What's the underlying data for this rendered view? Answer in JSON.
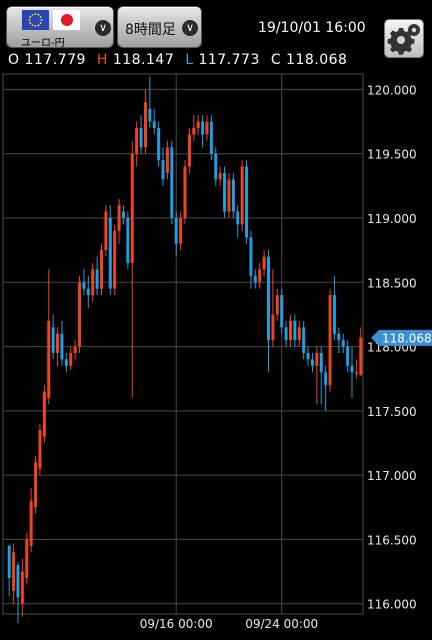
{
  "header": {
    "pair_label": "ユーロ-円",
    "timeframe_label": "8時間足",
    "datetime": "19/10/01 16:00",
    "icons": {
      "eu_flag": "eu-flag-icon",
      "jp_flag": "japan-flag-icon",
      "dropdown": "chevron-down-icon",
      "settings": "gear-icon"
    }
  },
  "ohlc": {
    "open_key": "O",
    "open": "117.779",
    "high_key": "H",
    "high": "118.147",
    "low_key": "L",
    "low": "117.773",
    "close_key": "C",
    "close": "118.068"
  },
  "colors": {
    "up": "#ef4322",
    "down": "#1da0e2",
    "grid": "#4a4a4a",
    "current_price_tag": "#3b8fd6"
  },
  "chart_data": {
    "type": "candlestick",
    "title": "",
    "ylim": [
      115.92,
      120.12
    ],
    "y_ticks": [
      "120.000",
      "119.500",
      "119.000",
      "118.500",
      "118.000",
      "117.500",
      "117.000",
      "116.500",
      "116.000"
    ],
    "x_ticks": [
      {
        "label": "09/16 00:00",
        "index": 38
      },
      {
        "label": "09/24 00:00",
        "index": 62
      }
    ],
    "current_price": "118.068",
    "candles": [
      [
        116.45,
        116.2,
        116.46,
        116.06
      ],
      [
        116.1,
        116.4,
        116.47,
        116.0
      ],
      [
        116.3,
        116.05,
        116.32,
        115.85
      ],
      [
        116.0,
        116.25,
        116.35,
        115.9
      ],
      [
        116.2,
        116.5,
        116.55,
        116.15
      ],
      [
        116.45,
        116.8,
        116.9,
        116.4
      ],
      [
        116.75,
        117.1,
        117.15,
        116.7
      ],
      [
        117.05,
        117.35,
        117.4,
        117.0
      ],
      [
        117.3,
        117.65,
        117.7,
        117.25
      ],
      [
        117.6,
        118.2,
        118.6,
        117.55
      ],
      [
        118.15,
        117.95,
        118.25,
        117.9
      ],
      [
        117.95,
        118.1,
        118.15,
        117.85
      ],
      [
        118.1,
        117.9,
        118.2,
        117.85
      ],
      [
        117.9,
        117.85,
        117.95,
        117.8
      ],
      [
        117.85,
        117.95,
        118.0,
        117.82
      ],
      [
        117.95,
        118.0,
        118.05,
        117.9
      ],
      [
        118.0,
        118.5,
        118.55,
        117.95
      ],
      [
        118.5,
        118.45,
        118.6,
        118.4
      ],
      [
        118.45,
        118.4,
        118.55,
        118.3
      ],
      [
        118.4,
        118.6,
        118.65,
        118.35
      ],
      [
        118.6,
        118.45,
        118.7,
        118.4
      ],
      [
        118.45,
        118.75,
        118.8,
        118.4
      ],
      [
        118.75,
        119.05,
        119.1,
        118.7
      ],
      [
        119.0,
        118.45,
        119.1,
        118.4
      ],
      [
        118.45,
        118.9,
        118.95,
        118.4
      ],
      [
        118.9,
        119.1,
        119.15,
        118.8
      ],
      [
        119.05,
        119.0,
        119.1,
        118.95
      ],
      [
        119.0,
        118.65,
        119.05,
        118.6
      ],
      [
        118.65,
        119.5,
        119.6,
        117.6
      ],
      [
        119.5,
        119.7,
        119.75,
        119.4
      ],
      [
        119.7,
        119.55,
        119.8,
        119.5
      ],
      [
        119.55,
        119.9,
        120.0,
        119.5
      ],
      [
        119.85,
        119.75,
        120.1,
        119.7
      ],
      [
        119.75,
        119.7,
        119.85,
        119.65
      ],
      [
        119.7,
        119.45,
        119.75,
        119.4
      ],
      [
        119.45,
        119.3,
        119.55,
        119.25
      ],
      [
        119.35,
        119.55,
        119.6,
        119.3
      ],
      [
        119.55,
        119.0,
        119.6,
        118.95
      ],
      [
        119.0,
        118.8,
        119.05,
        118.7
      ],
      [
        118.8,
        119.0,
        119.05,
        118.75
      ],
      [
        119.0,
        119.4,
        119.45,
        118.95
      ],
      [
        119.4,
        119.65,
        119.7,
        119.35
      ],
      [
        119.65,
        119.7,
        119.8,
        119.6
      ],
      [
        119.7,
        119.75,
        119.8,
        119.65
      ],
      [
        119.75,
        119.65,
        119.8,
        119.55
      ],
      [
        119.65,
        119.75,
        119.8,
        119.6
      ],
      [
        119.75,
        119.5,
        119.8,
        119.45
      ],
      [
        119.5,
        119.3,
        119.55,
        119.25
      ],
      [
        119.3,
        119.35,
        119.4,
        119.25
      ],
      [
        119.35,
        119.05,
        119.4,
        119.0
      ],
      [
        119.05,
        119.3,
        119.35,
        119.0
      ],
      [
        119.3,
        119.05,
        119.35,
        119.0
      ],
      [
        119.05,
        118.95,
        119.1,
        118.85
      ],
      [
        118.95,
        119.4,
        119.45,
        118.9
      ],
      [
        119.4,
        118.85,
        119.45,
        118.8
      ],
      [
        118.85,
        118.55,
        118.9,
        118.45
      ],
      [
        118.55,
        118.5,
        118.6,
        118.45
      ],
      [
        118.5,
        118.6,
        118.65,
        118.45
      ],
      [
        118.6,
        118.7,
        118.75,
        118.55
      ],
      [
        118.7,
        118.05,
        118.75,
        117.8
      ],
      [
        118.05,
        118.25,
        118.6,
        118.0
      ],
      [
        118.25,
        118.4,
        118.45,
        118.2
      ],
      [
        118.4,
        118.15,
        118.45,
        118.1
      ],
      [
        118.15,
        118.05,
        118.2,
        118.0
      ],
      [
        118.05,
        118.2,
        118.25,
        118.0
      ],
      [
        118.2,
        118.05,
        118.25,
        118.0
      ],
      [
        118.05,
        118.15,
        118.2,
        118.0
      ],
      [
        118.15,
        117.95,
        118.2,
        117.9
      ],
      [
        117.95,
        117.9,
        118.0,
        117.85
      ],
      [
        117.9,
        117.85,
        117.95,
        117.8
      ],
      [
        117.85,
        117.95,
        118.0,
        117.55
      ],
      [
        117.95,
        117.8,
        118.0,
        117.55
      ],
      [
        117.8,
        117.7,
        117.85,
        117.5
      ],
      [
        117.7,
        118.4,
        118.45,
        117.65
      ],
      [
        118.4,
        118.1,
        118.55,
        118.05
      ],
      [
        118.1,
        118.05,
        118.15,
        117.95
      ],
      [
        118.05,
        118.0,
        118.1,
        117.95
      ],
      [
        118.0,
        117.85,
        118.05,
        117.8
      ],
      [
        117.85,
        117.8,
        118.0,
        117.6
      ],
      [
        117.8,
        117.8,
        117.9,
        117.75
      ],
      [
        117.78,
        118.07,
        118.15,
        117.77
      ]
    ]
  }
}
